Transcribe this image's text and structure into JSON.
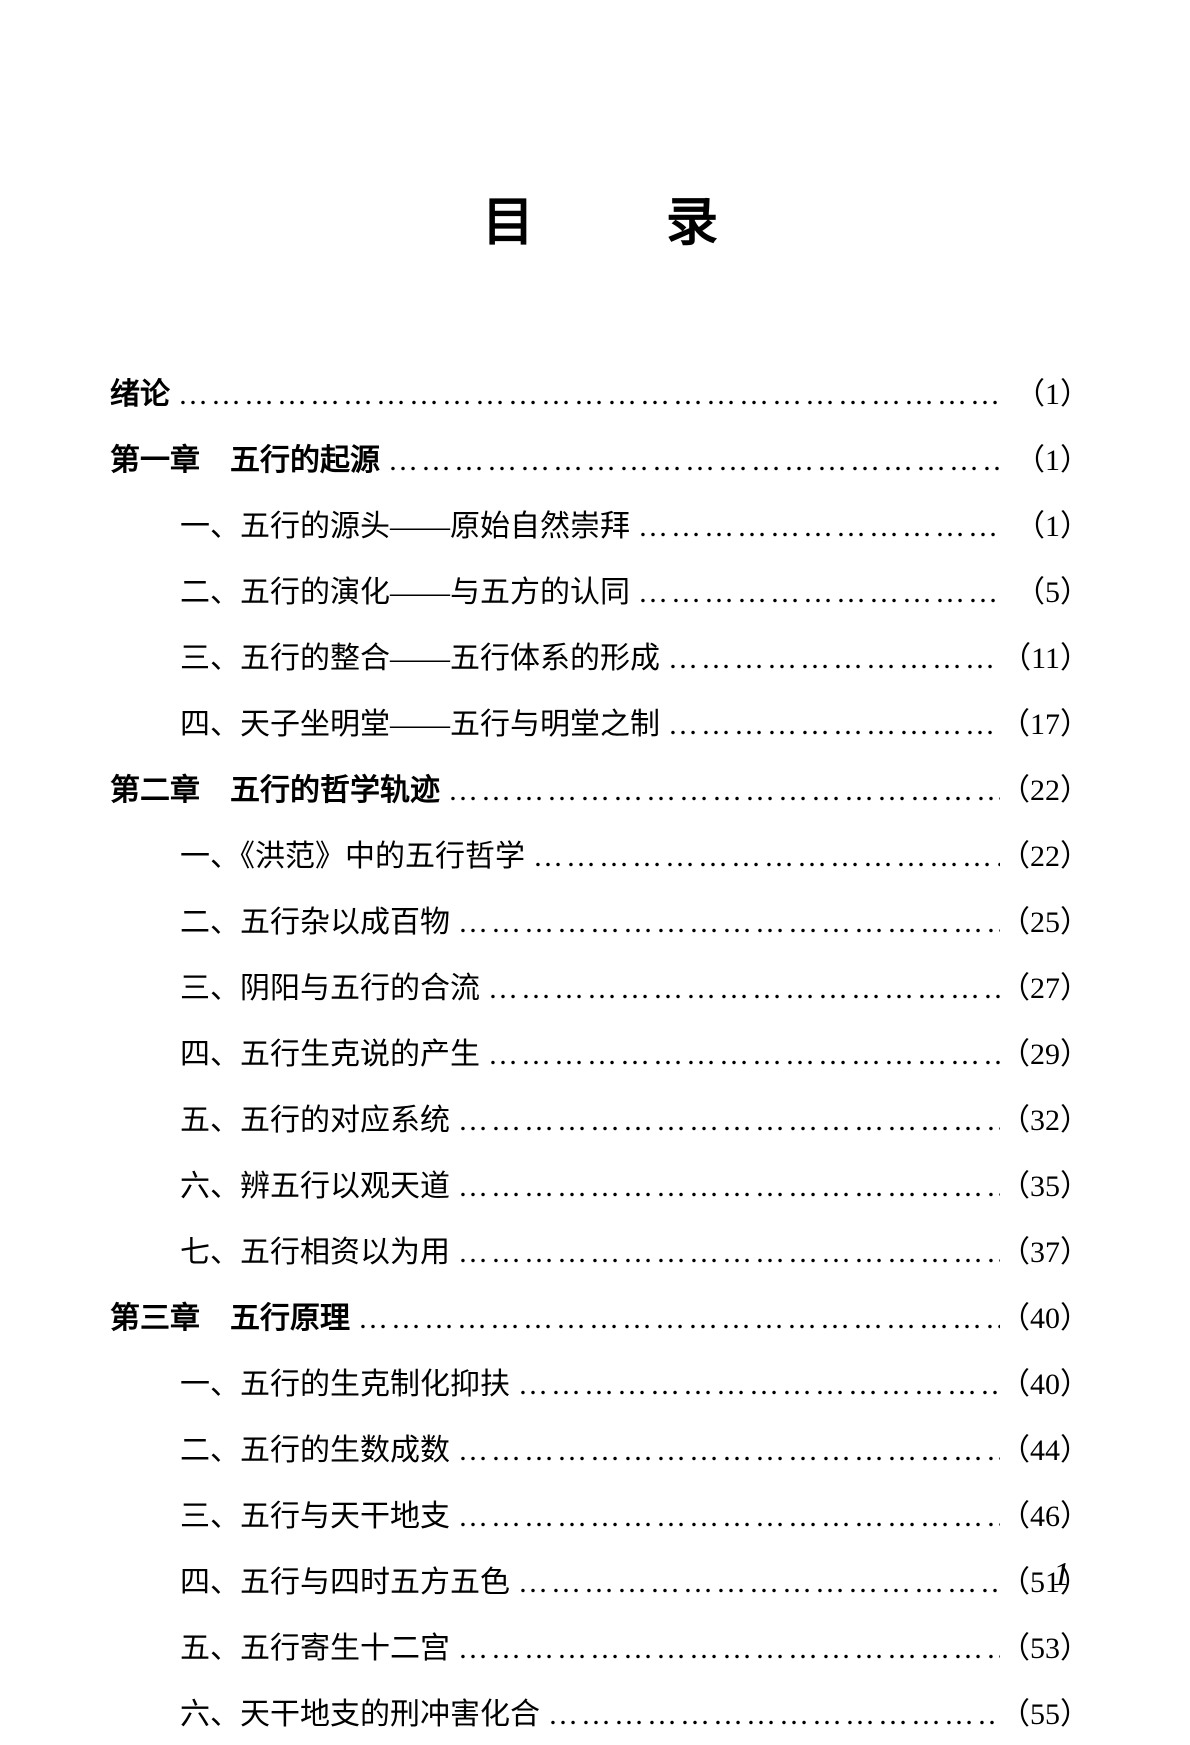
{
  "title": "目　录",
  "page_number": "1",
  "entries": [
    {
      "label": "绪论",
      "page": "（1）",
      "bold": true,
      "indent": false
    },
    {
      "label": "第一章　五行的起源",
      "page": "（1）",
      "bold": true,
      "indent": false
    },
    {
      "label": "一、五行的源头——原始自然崇拜",
      "page": "（1）",
      "bold": false,
      "indent": true
    },
    {
      "label": "二、五行的演化——与五方的认同",
      "page": "（5）",
      "bold": false,
      "indent": true
    },
    {
      "label": "三、五行的整合——五行体系的形成",
      "page": "（11）",
      "bold": false,
      "indent": true
    },
    {
      "label": "四、天子坐明堂——五行与明堂之制",
      "page": "（17）",
      "bold": false,
      "indent": true
    },
    {
      "label": "第二章　五行的哲学轨迹",
      "page": "（22）",
      "bold": true,
      "indent": false
    },
    {
      "label": "一、《洪范》中的五行哲学",
      "page": "（22）",
      "bold": false,
      "indent": true
    },
    {
      "label": "二、五行杂以成百物",
      "page": "（25）",
      "bold": false,
      "indent": true
    },
    {
      "label": "三、阴阳与五行的合流",
      "page": "（27）",
      "bold": false,
      "indent": true
    },
    {
      "label": "四、五行生克说的产生",
      "page": "（29）",
      "bold": false,
      "indent": true
    },
    {
      "label": "五、五行的对应系统",
      "page": "（32）",
      "bold": false,
      "indent": true
    },
    {
      "label": "六、辨五行以观天道",
      "page": "（35）",
      "bold": false,
      "indent": true
    },
    {
      "label": "七、五行相资以为用",
      "page": "（37）",
      "bold": false,
      "indent": true
    },
    {
      "label": "第三章　五行原理",
      "page": "（40）",
      "bold": true,
      "indent": false
    },
    {
      "label": "一、五行的生克制化抑扶",
      "page": "（40）",
      "bold": false,
      "indent": true
    },
    {
      "label": "二、五行的生数成数",
      "page": "（44）",
      "bold": false,
      "indent": true
    },
    {
      "label": "三、五行与天干地支",
      "page": "（46）",
      "bold": false,
      "indent": true
    },
    {
      "label": "四、五行与四时五方五色",
      "page": "（51）",
      "bold": false,
      "indent": true
    },
    {
      "label": "五、五行寄生十二宫",
      "page": "（53）",
      "bold": false,
      "indent": true
    },
    {
      "label": "六、天干地支的刑冲害化合",
      "page": "（55）",
      "bold": false,
      "indent": true
    }
  ]
}
